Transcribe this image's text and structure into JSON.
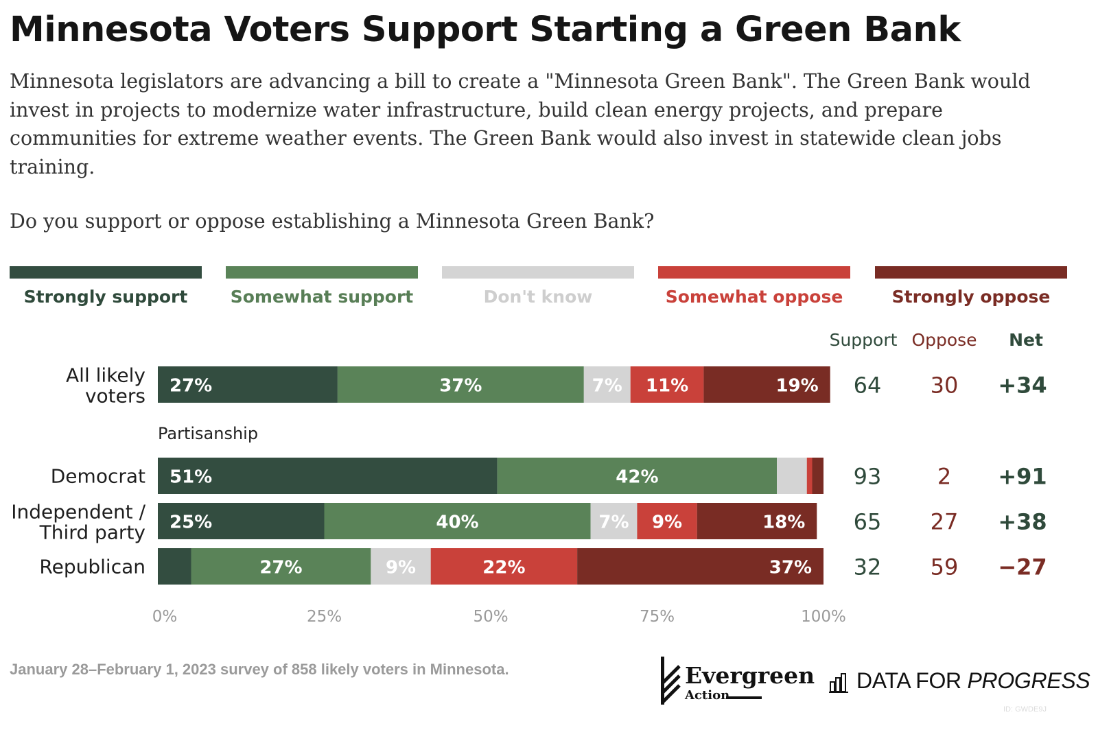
{
  "header": {
    "title": "Minnesota Voters Support Starting a Green Bank",
    "description": "Minnesota legislators are advancing a bill to create a \"Minnesota Green Bank\". The Green Bank would invest in projects to modernize water infrastructure, build clean energy projects, and prepare communities for extreme weather events. The Green Bank would also invest in statewide clean jobs training.",
    "question": "Do you support or oppose establishing a Minnesota Green Bank?"
  },
  "legend": [
    {
      "label": "Strongly support",
      "color": "#334d40",
      "text_color": "#2f4a3b"
    },
    {
      "label": "Somewhat support",
      "color": "#5a8358",
      "text_color": "#587e56"
    },
    {
      "label": "Don't know",
      "color": "#d4d4d4",
      "text_color": "#cecece"
    },
    {
      "label": "Somewhat oppose",
      "color": "#c9413a",
      "text_color": "#c9413a"
    },
    {
      "label": "Strongly oppose",
      "color": "#792c24",
      "text_color": "#7a2c24"
    }
  ],
  "chart_data": {
    "type": "bar",
    "orientation": "horizontal",
    "stacked": true,
    "xlim": [
      0,
      100
    ],
    "x_ticks": [
      "0%",
      "25%",
      "50%",
      "75%",
      "100%"
    ],
    "series_names": [
      "Strongly support",
      "Somewhat support",
      "Don't know",
      "Somewhat oppose",
      "Strongly oppose"
    ],
    "group_label": "Partisanship",
    "columns": {
      "support": "Support",
      "oppose": "Oppose",
      "net": "Net"
    },
    "rows": [
      {
        "category": [
          "All likely",
          "voters"
        ],
        "values": [
          27,
          37,
          7,
          11,
          19
        ],
        "labels": [
          "27%",
          "37%",
          "7%",
          "11%",
          "19%"
        ],
        "support": "64",
        "oppose": "30",
        "net": "+34"
      },
      {
        "category": [
          "Democrat"
        ],
        "values": [
          51,
          42,
          4.5,
          0.8,
          1.7
        ],
        "labels": [
          "51%",
          "42%",
          "",
          "",
          ""
        ],
        "support": "93",
        "oppose": "2",
        "net": "+91"
      },
      {
        "category": [
          "Independent /",
          "Third party"
        ],
        "values": [
          25,
          40,
          7,
          9,
          18
        ],
        "labels": [
          "25%",
          "40%",
          "7%",
          "9%",
          "18%"
        ],
        "support": "65",
        "oppose": "27",
        "net": "+38"
      },
      {
        "category": [
          "Republican"
        ],
        "values": [
          5,
          27,
          9,
          22,
          37
        ],
        "labels": [
          "",
          "27%",
          "9%",
          "22%",
          "37%"
        ],
        "support": "32",
        "oppose": "59",
        "net": "−27"
      }
    ],
    "colors": {
      "support_col": "#2f4a3b",
      "oppose_col": "#7a2c24",
      "net_positive": "#2f4a3b",
      "net_negative": "#7a2c24"
    }
  },
  "footer": {
    "source": "January 28–February 1, 2023 survey of 858 likely voters in Minnesota.",
    "logo_evergreen": "Evergreen",
    "logo_evergreen_sub": "Action",
    "logo_dfp_plain": "DATA FOR ",
    "logo_dfp_italic": "PROGRESS",
    "image_id": "ID: GWDE9J"
  }
}
